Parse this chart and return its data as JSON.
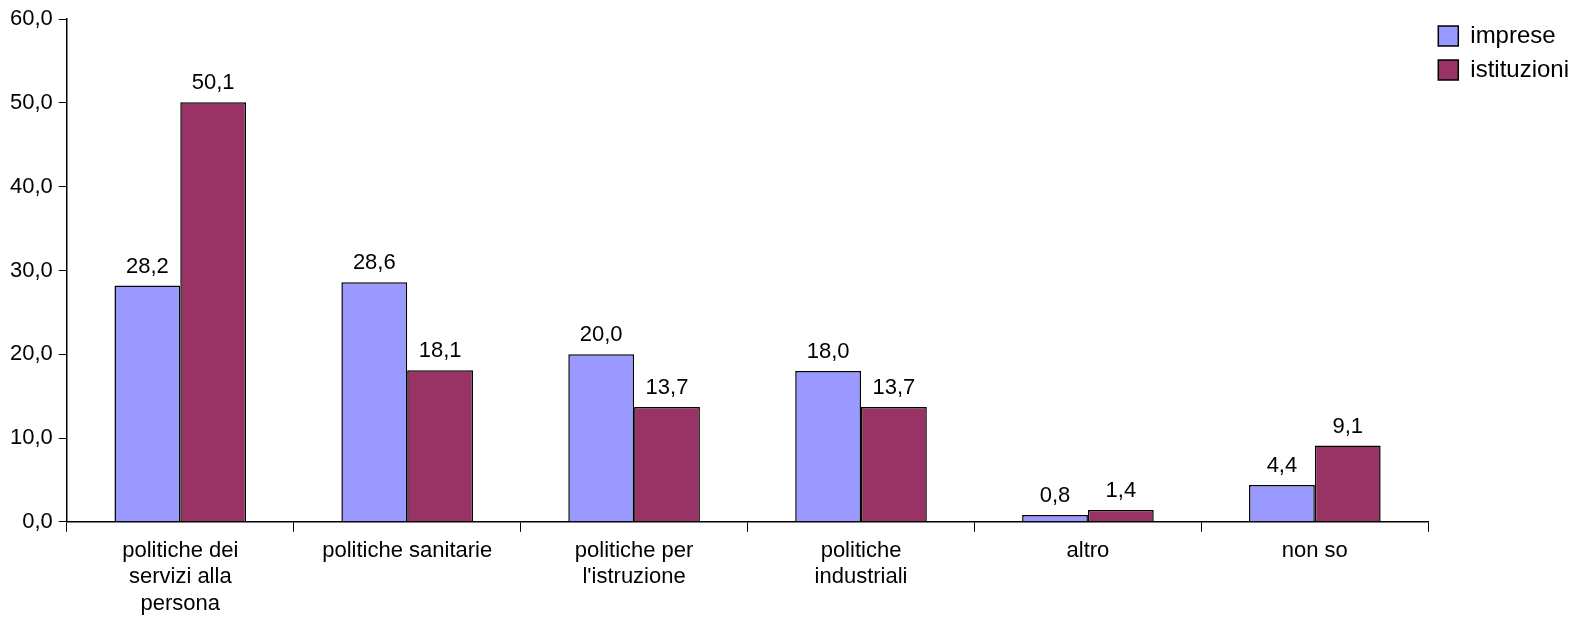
{
  "chart_data": {
    "type": "bar",
    "categories": [
      "politiche dei servizi alla persona",
      "politiche sanitarie",
      "politiche per l'istruzione",
      "politiche industriali",
      "altro",
      "non so"
    ],
    "series": [
      {
        "name": "imprese",
        "color": "#9999ff",
        "values": [
          28.2,
          28.6,
          20.0,
          18.0,
          0.8,
          4.4
        ],
        "value_labels": [
          "28,2",
          "28,6",
          "20,0",
          "18,0",
          "0,8",
          "4,4"
        ]
      },
      {
        "name": "istituzioni",
        "color": "#993366",
        "values": [
          50.1,
          18.1,
          13.7,
          13.7,
          1.4,
          9.1
        ],
        "value_labels": [
          "50,1",
          "18,1",
          "13,7",
          "13,7",
          "1,4",
          "9,1"
        ]
      }
    ],
    "ylim": [
      0,
      60
    ],
    "yticks": [
      {
        "value": 0,
        "label": "0,0"
      },
      {
        "value": 10,
        "label": "10,0"
      },
      {
        "value": 20,
        "label": "20,0"
      },
      {
        "value": 30,
        "label": "30,0"
      },
      {
        "value": 40,
        "label": "40,0"
      },
      {
        "value": 50,
        "label": "50,0"
      },
      {
        "value": 60,
        "label": "60,0"
      }
    ],
    "grid": false,
    "legend": "top right"
  }
}
